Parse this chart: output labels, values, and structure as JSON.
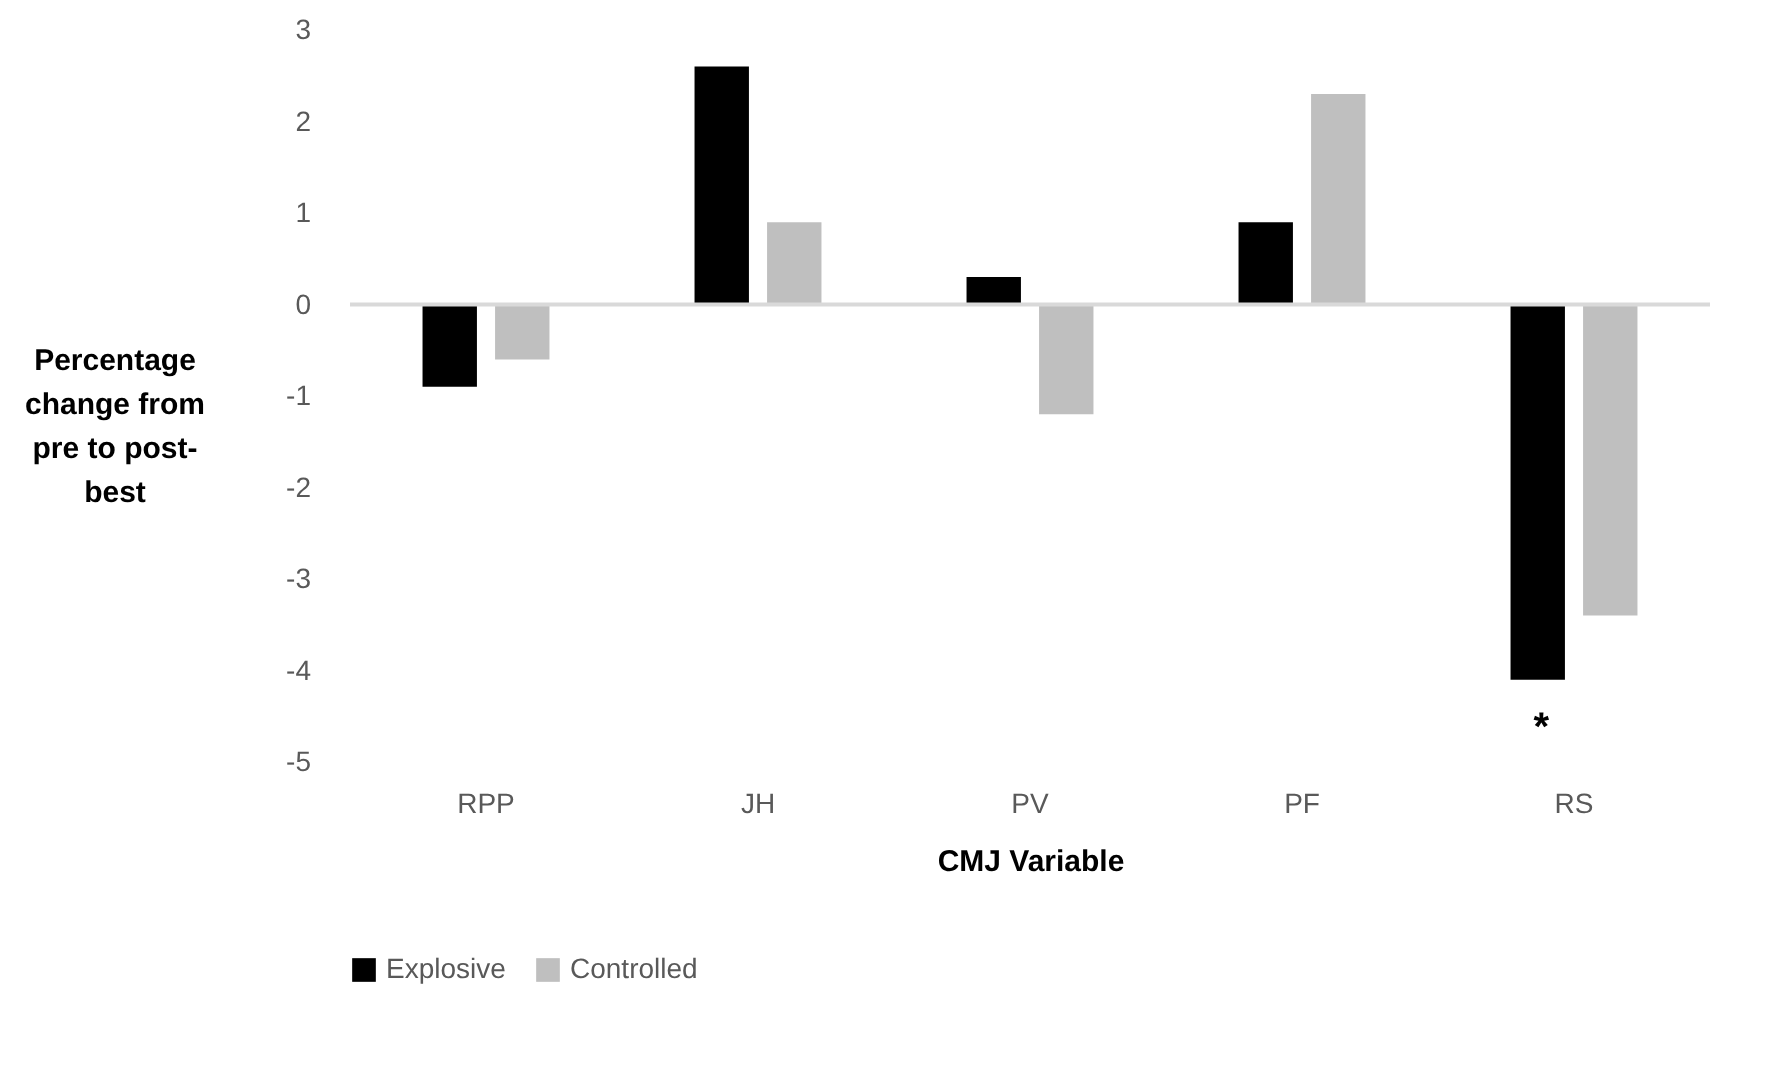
{
  "chart_data": {
    "type": "bar",
    "xlabel": "CMJ Variable",
    "ylabel": "Percentage change from pre to post-best",
    "categories": [
      "RPP",
      "JH",
      "PV",
      "PF",
      "RS"
    ],
    "series": [
      {
        "name": "Explosive",
        "color": "#000000",
        "values": [
          -0.9,
          2.6,
          0.3,
          0.9,
          -4.1
        ]
      },
      {
        "name": "Controlled",
        "color": "#bfbfbf",
        "values": [
          -0.6,
          0.9,
          -1.2,
          2.3,
          -3.4
        ]
      }
    ],
    "ylim": [
      -5,
      3
    ],
    "yticks": [
      -5,
      -4,
      -3,
      -2,
      -1,
      0,
      1,
      2,
      3
    ],
    "annotations": [
      {
        "text": "*",
        "x": "RS",
        "y": -4.1
      }
    ],
    "legend": "bottom"
  }
}
